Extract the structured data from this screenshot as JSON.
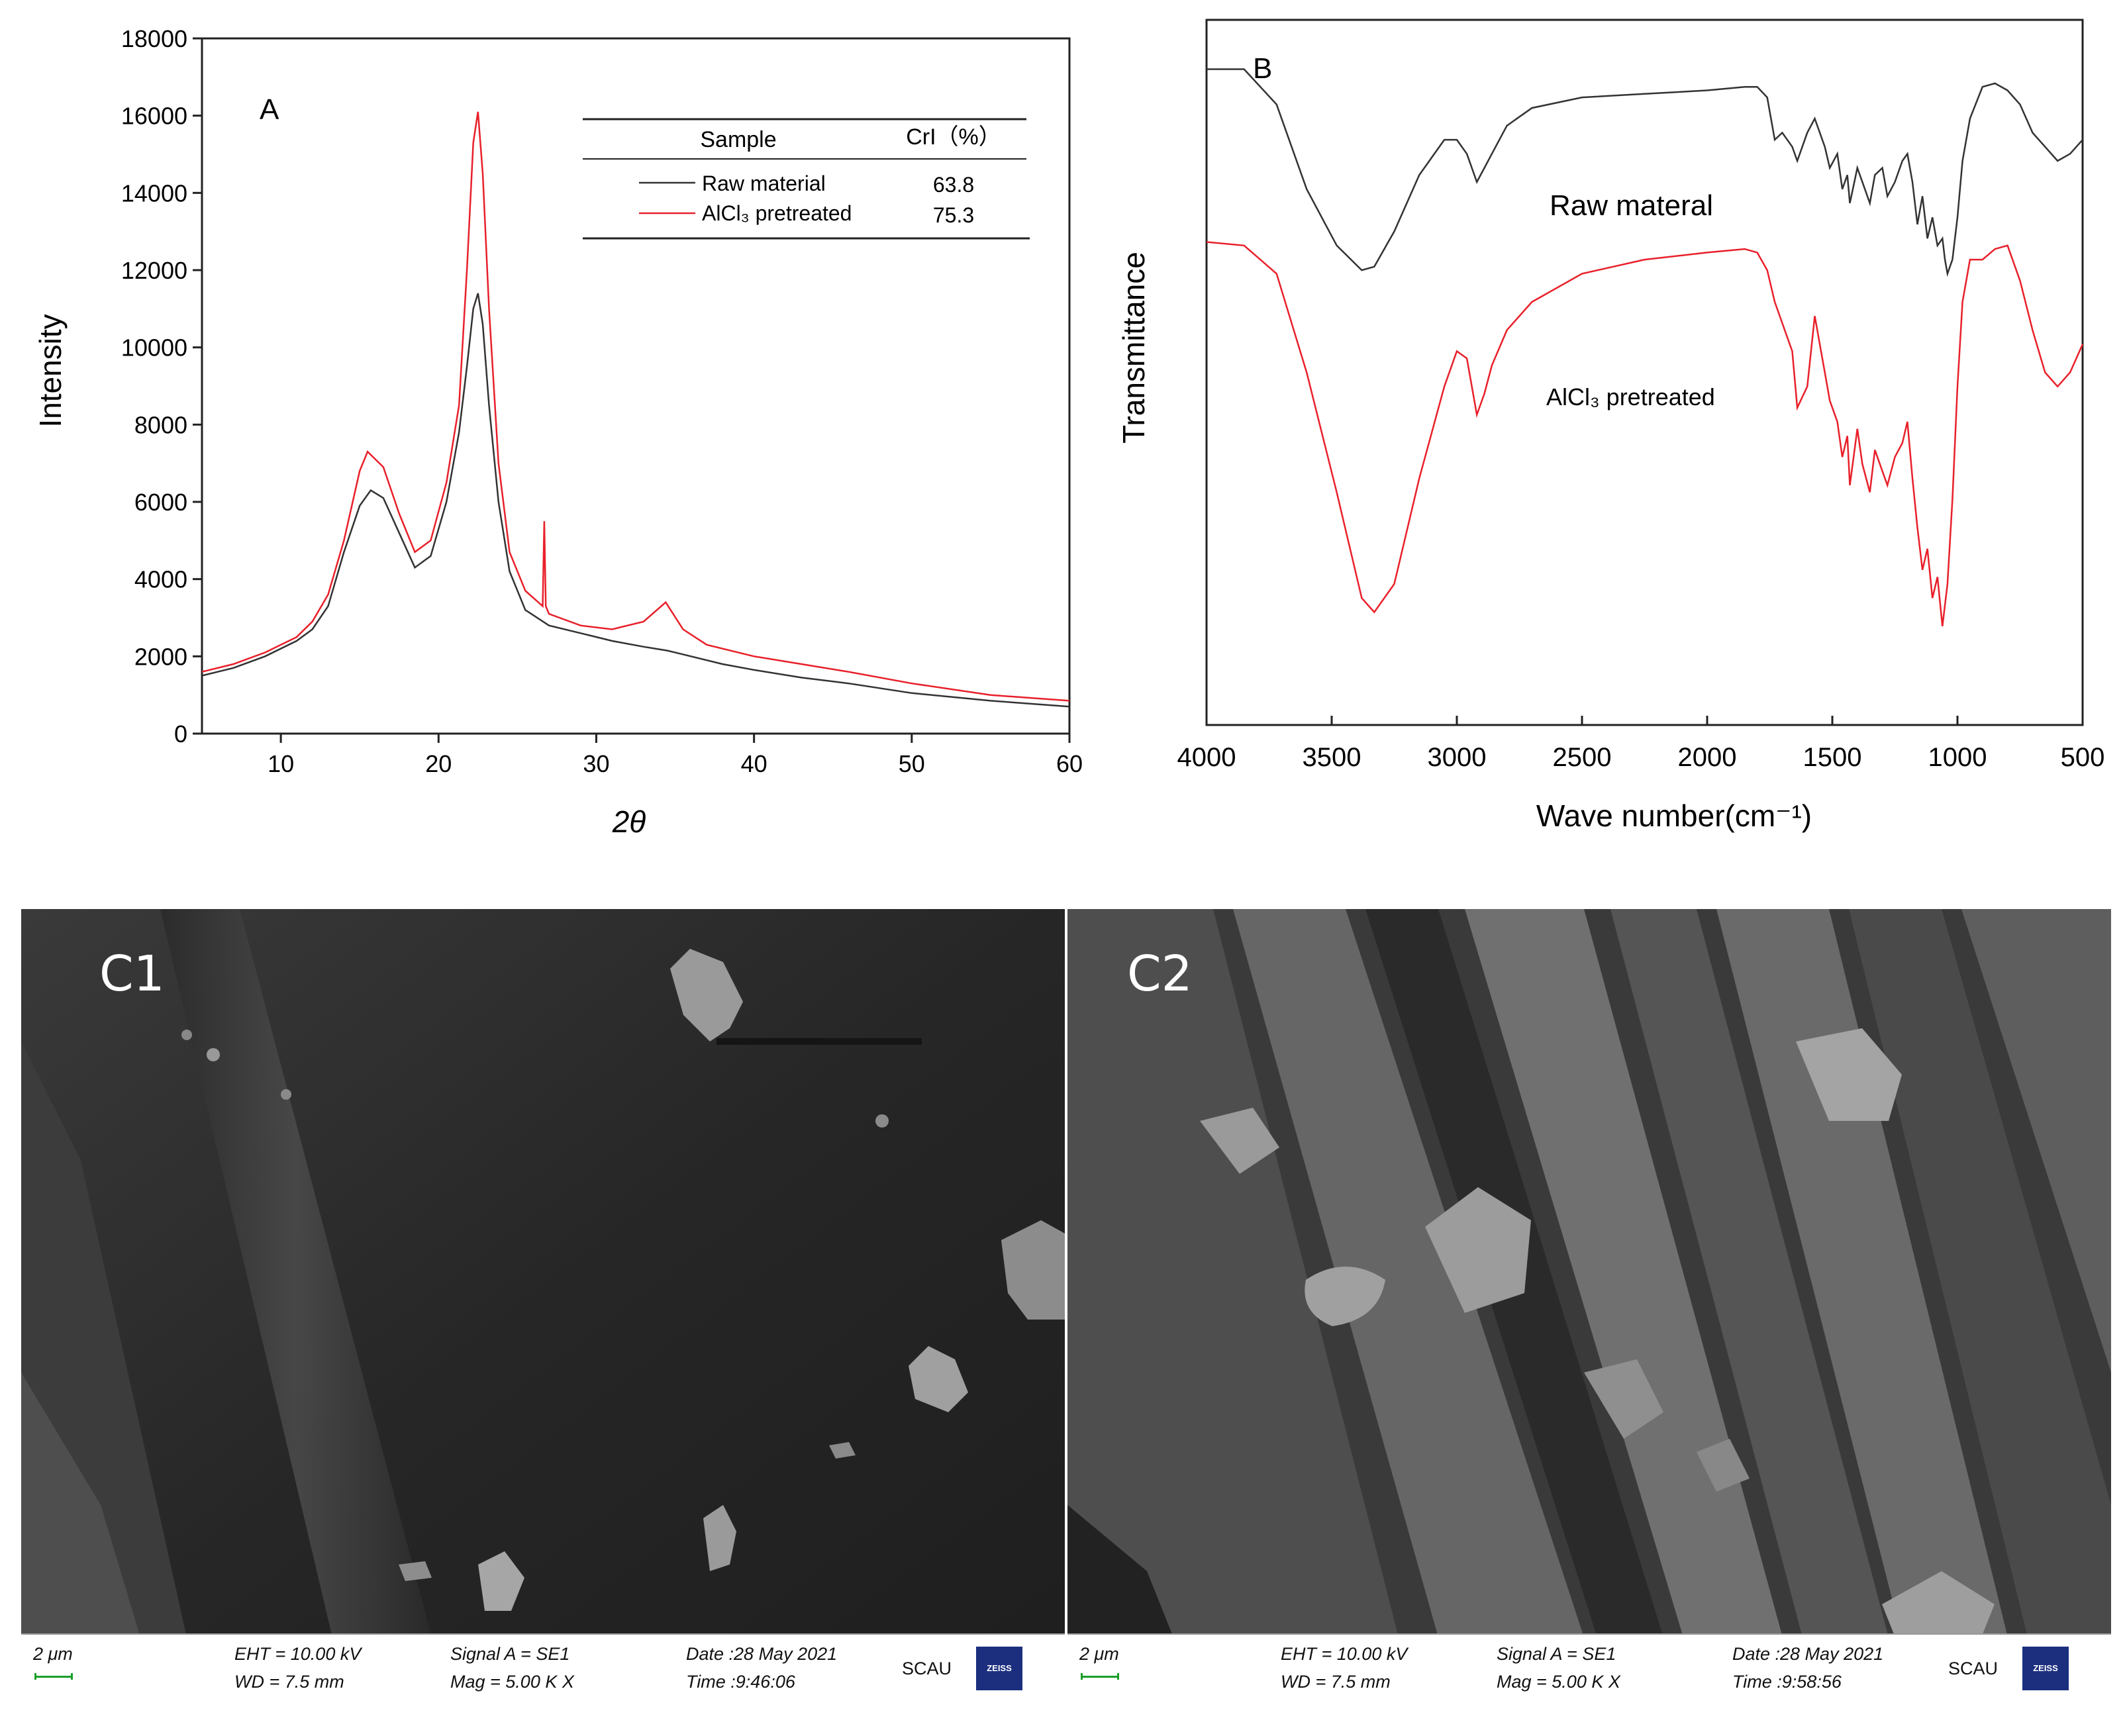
{
  "chart_data": [
    {
      "panel": "A",
      "type": "line",
      "xlabel": "2θ",
      "ylabel": "Intensity",
      "xlim": [
        5,
        60
      ],
      "ylim": [
        0,
        18000
      ],
      "xticks": [
        10,
        20,
        30,
        40,
        50,
        60
      ],
      "yticks": [
        0,
        2000,
        4000,
        6000,
        8000,
        10000,
        12000,
        14000,
        16000,
        18000
      ],
      "table": {
        "headers": [
          "Sample",
          "CrI（%）"
        ],
        "rows": [
          {
            "sample": "Raw material",
            "value": "63.8",
            "color": "#333333"
          },
          {
            "sample": "AlCl₃ pretreated",
            "value": "75.3",
            "color": "#e8202a"
          }
        ]
      },
      "series": [
        {
          "name": "Raw material",
          "color": "#333333",
          "x": [
            5,
            7,
            9,
            11,
            12,
            13,
            14,
            15,
            15.7,
            16.5,
            17.5,
            18.5,
            19.5,
            20.5,
            21.3,
            21.8,
            22.2,
            22.5,
            22.8,
            23.2,
            23.8,
            24.5,
            25.5,
            27,
            29,
            31,
            33,
            34.5,
            36,
            38,
            40,
            43,
            46,
            50,
            55,
            60
          ],
          "y": [
            1500,
            1700,
            2000,
            2400,
            2700,
            3300,
            4700,
            5900,
            6300,
            6100,
            5200,
            4300,
            4600,
            6000,
            7800,
            9500,
            11000,
            11400,
            10600,
            8500,
            6000,
            4200,
            3200,
            2800,
            2600,
            2400,
            2250,
            2150,
            2000,
            1800,
            1650,
            1450,
            1300,
            1050,
            850,
            700
          ]
        },
        {
          "name": "AlCl₃ pretreated",
          "color": "#e8202a",
          "x": [
            5,
            7,
            9,
            11,
            12,
            13,
            14,
            15,
            15.5,
            16.5,
            17.5,
            18.5,
            19.5,
            20.5,
            21.3,
            21.8,
            22.2,
            22.5,
            22.8,
            23.2,
            23.8,
            24.5,
            25.5,
            26.6,
            26.7,
            26.8,
            27,
            29,
            31,
            33,
            34.4,
            35.5,
            37,
            40,
            43,
            46,
            50,
            55,
            60
          ],
          "y": [
            1600,
            1800,
            2100,
            2500,
            2900,
            3600,
            5000,
            6800,
            7300,
            6900,
            5700,
            4700,
            5000,
            6500,
            8500,
            12000,
            15300,
            16100,
            14500,
            11000,
            7000,
            4700,
            3700,
            3300,
            5500,
            3300,
            3100,
            2800,
            2700,
            2900,
            3400,
            2700,
            2300,
            2000,
            1800,
            1600,
            1300,
            1000,
            850
          ]
        }
      ]
    },
    {
      "panel": "B",
      "type": "line",
      "xlabel": "Wave number(cm⁻¹)",
      "ylabel": "Transmittance",
      "xlim": [
        4000,
        500
      ],
      "xticks": [
        4000,
        3500,
        3000,
        2500,
        2000,
        1500,
        1000,
        500
      ],
      "series": [
        {
          "name": "Raw materal",
          "color": "#333333",
          "x": [
            4000,
            3850,
            3720,
            3600,
            3480,
            3380,
            3330,
            3250,
            3150,
            3050,
            3000,
            2960,
            2920,
            2890,
            2860,
            2800,
            2700,
            2500,
            2250,
            2000,
            1850,
            1800,
            1760,
            1730,
            1700,
            1660,
            1640,
            1600,
            1570,
            1530,
            1510,
            1480,
            1460,
            1440,
            1430,
            1400,
            1380,
            1350,
            1330,
            1300,
            1280,
            1250,
            1220,
            1200,
            1180,
            1160,
            1140,
            1120,
            1100,
            1080,
            1060,
            1050,
            1040,
            1020,
            1000,
            980,
            950,
            900,
            850,
            800,
            750,
            700,
            650,
            600,
            550,
            500
          ],
          "y": [
            0.93,
            0.93,
            0.88,
            0.76,
            0.68,
            0.645,
            0.65,
            0.7,
            0.78,
            0.83,
            0.83,
            0.81,
            0.77,
            0.79,
            0.81,
            0.85,
            0.875,
            0.89,
            0.895,
            0.9,
            0.905,
            0.905,
            0.89,
            0.83,
            0.84,
            0.82,
            0.8,
            0.84,
            0.86,
            0.82,
            0.79,
            0.81,
            0.76,
            0.78,
            0.74,
            0.79,
            0.77,
            0.74,
            0.78,
            0.79,
            0.75,
            0.77,
            0.8,
            0.81,
            0.77,
            0.71,
            0.75,
            0.69,
            0.72,
            0.68,
            0.69,
            0.66,
            0.64,
            0.66,
            0.72,
            0.8,
            0.86,
            0.905,
            0.91,
            0.9,
            0.88,
            0.84,
            0.82,
            0.8,
            0.81,
            0.83
          ]
        },
        {
          "name": "AlCl₃ pretreated",
          "color": "#e8202a",
          "x": [
            4000,
            3850,
            3720,
            3600,
            3480,
            3380,
            3330,
            3250,
            3150,
            3050,
            3000,
            2960,
            2920,
            2890,
            2860,
            2800,
            2700,
            2500,
            2250,
            2000,
            1850,
            1800,
            1760,
            1730,
            1700,
            1660,
            1640,
            1600,
            1570,
            1530,
            1510,
            1480,
            1460,
            1440,
            1430,
            1400,
            1380,
            1350,
            1330,
            1300,
            1280,
            1250,
            1220,
            1200,
            1180,
            1160,
            1140,
            1120,
            1100,
            1080,
            1060,
            1050,
            1040,
            1020,
            1000,
            980,
            950,
            900,
            850,
            800,
            750,
            700,
            650,
            600,
            550,
            500
          ],
          "y": [
            0.685,
            0.68,
            0.64,
            0.5,
            0.33,
            0.18,
            0.16,
            0.2,
            0.35,
            0.48,
            0.53,
            0.52,
            0.44,
            0.47,
            0.51,
            0.56,
            0.6,
            0.64,
            0.66,
            0.67,
            0.675,
            0.67,
            0.645,
            0.6,
            0.57,
            0.53,
            0.45,
            0.48,
            0.58,
            0.5,
            0.46,
            0.43,
            0.38,
            0.41,
            0.34,
            0.42,
            0.37,
            0.33,
            0.39,
            0.36,
            0.34,
            0.38,
            0.4,
            0.43,
            0.35,
            0.28,
            0.22,
            0.25,
            0.18,
            0.21,
            0.14,
            0.17,
            0.2,
            0.32,
            0.48,
            0.6,
            0.66,
            0.66,
            0.675,
            0.68,
            0.63,
            0.56,
            0.5,
            0.48,
            0.5,
            0.54
          ]
        }
      ]
    }
  ],
  "sem": [
    {
      "label": "C1",
      "scale": "2 μm",
      "eht": "EHT = 10.00 kV",
      "wd": "WD =  7.5 mm",
      "signal": "Signal A = SE1",
      "mag": "Mag =     5.00 K X",
      "date": "Date :28 May 2021",
      "time": "Time :9:46:06",
      "org": "SCAU",
      "brand": "ZEISS"
    },
    {
      "label": "C2",
      "scale": "2 μm",
      "eht": "EHT = 10.00 kV",
      "wd": "WD =  7.5 mm",
      "signal": "Signal A = SE1",
      "mag": "Mag =     5.00 K X",
      "date": "Date :28 May 2021",
      "time": "Time :9:58:56",
      "org": "SCAU",
      "brand": "ZEISS"
    }
  ],
  "colors": {
    "raw": "#333333",
    "treated": "#e8202a",
    "sem_bg": "#202020"
  }
}
